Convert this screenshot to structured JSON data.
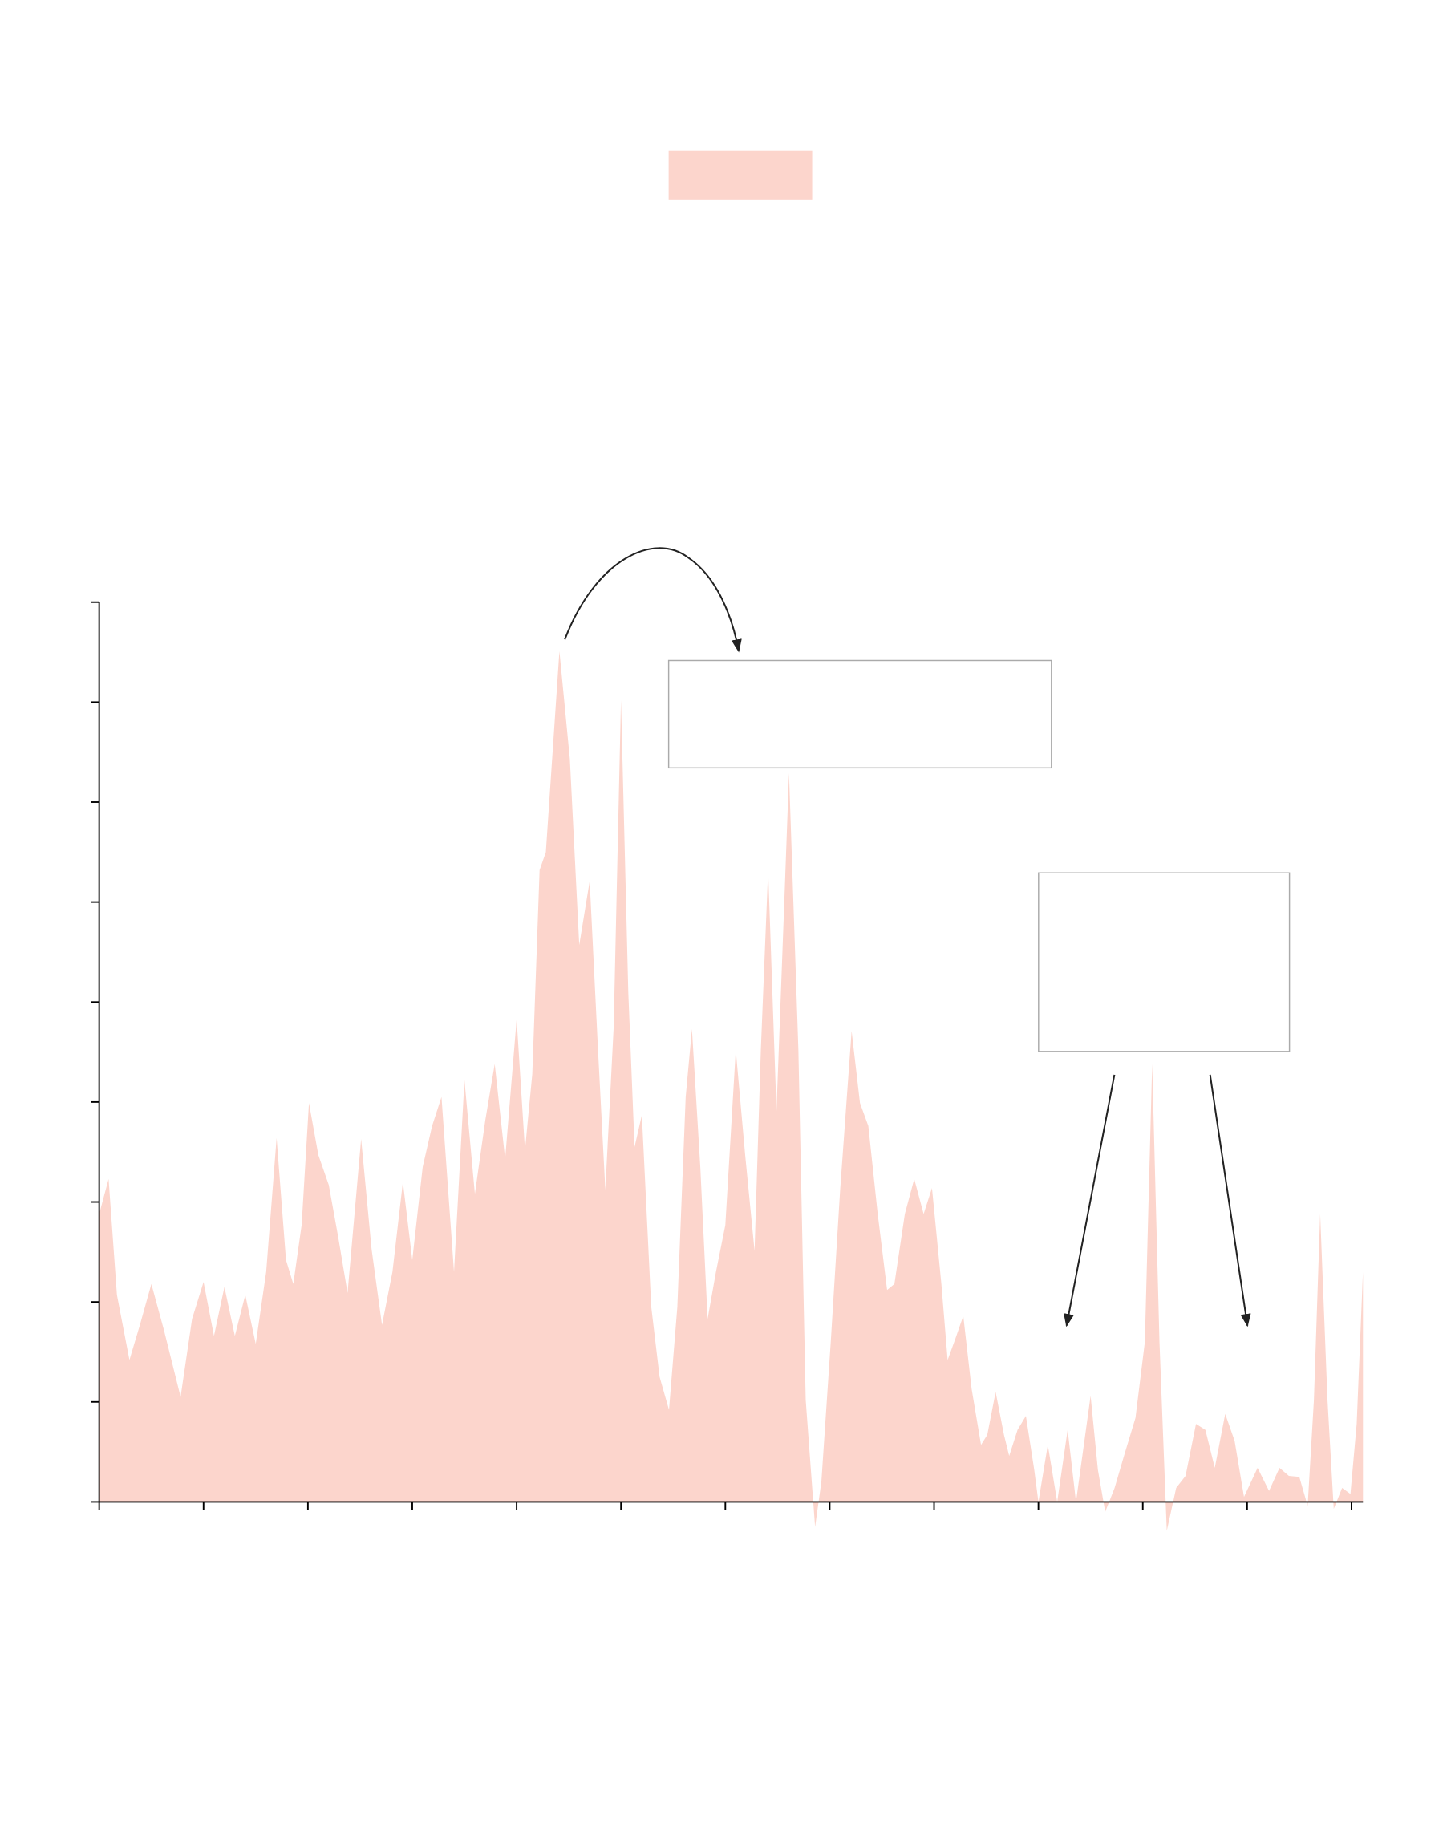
{
  "chart_data": {
    "type": "area",
    "color": "#fcd5cc",
    "x": [
      0,
      0.09,
      0.17,
      0.29,
      0.39,
      0.5,
      0.62,
      0.78,
      0.89,
      1.0,
      1.1,
      1.2,
      1.3,
      1.4,
      1.5,
      1.6,
      1.7,
      1.79,
      1.86,
      1.94,
      2.01,
      2.1,
      2.2,
      2.29,
      2.38,
      2.51,
      2.61,
      2.71,
      2.81,
      2.91,
      3.0,
      3.1,
      3.19,
      3.28,
      3.4,
      3.5,
      3.6,
      3.7,
      3.79,
      3.89,
      4.0,
      4.08,
      4.15,
      4.22,
      4.28,
      4.41,
      4.51,
      4.6,
      4.7,
      4.78,
      4.85,
      4.93,
      5.0,
      5.07,
      5.13,
      5.2,
      5.29,
      5.37,
      5.46,
      5.54,
      5.62,
      5.68,
      5.76,
      5.83,
      5.91,
      6.0,
      6.1,
      6.19,
      6.28,
      6.34,
      6.41,
      6.49,
      6.57,
      6.61,
      6.7,
      6.77,
      6.86,
      6.92,
      7.01,
      7.1,
      7.21,
      7.29,
      7.37,
      7.46,
      7.55,
      7.62,
      7.72,
      7.81,
      7.9,
      7.98,
      8.07,
      8.13,
      8.2,
      8.28,
      8.36,
      8.45,
      8.51,
      8.59,
      8.67,
      8.72,
      8.8,
      8.88,
      8.96,
      9.0,
      9.09,
      9.18,
      9.28,
      9.36,
      9.5,
      9.57,
      9.64,
      9.73,
      9.82,
      9.93,
      10.02,
      10.09,
      10.16,
      10.23,
      10.32,
      10.41,
      10.51,
      10.6,
      10.69,
      10.79,
      10.88,
      10.97,
      11.1,
      11.21,
      11.31,
      11.4,
      11.5,
      11.58,
      11.64,
      11.7,
      11.77,
      11.83,
      11.91,
      11.99,
      12.05,
      12.11
    ],
    "values": [
      2.88,
      3.23,
      2.07,
      1.42,
      1.77,
      2.18,
      1.72,
      1.05,
      1.83,
      2.2,
      1.66,
      2.15,
      1.66,
      2.07,
      1.58,
      2.3,
      3.64,
      2.42,
      2.18,
      2.77,
      3.99,
      3.47,
      3.17,
      2.65,
      2.09,
      3.63,
      2.53,
      1.77,
      2.3,
      3.2,
      2.42,
      3.35,
      3.76,
      4.05,
      2.3,
      4.22,
      3.08,
      3.82,
      4.38,
      3.43,
      4.83,
      3.52,
      4.28,
      6.32,
      6.5,
      8.51,
      7.43,
      5.57,
      6.21,
      4.52,
      3.12,
      4.75,
      8.02,
      5.1,
      3.55,
      3.87,
      1.95,
      1.25,
      0.92,
      1.95,
      4.05,
      4.73,
      3.35,
      1.83,
      2.3,
      2.77,
      4.52,
      3.47,
      2.51,
      4.52,
      6.32,
      3.91,
      6.15,
      7.29,
      4.52,
      1.02,
      -0.25,
      0.2,
      1.6,
      3.12,
      4.71,
      3.99,
      3.76,
      2.88,
      2.12,
      2.18,
      2.88,
      3.23,
      2.88,
      3.14,
      2.18,
      1.42,
      1.62,
      1.86,
      1.13,
      0.57,
      0.67,
      1.1,
      0.67,
      0.46,
      0.72,
      0.86,
      0.32,
      0,
      0.57,
      0,
      0.72,
      0,
      1.06,
      0.32,
      -0.1,
      0.14,
      0.46,
      0.84,
      1.6,
      4.38,
      1.6,
      -0.29,
      0.14,
      0.26,
      0.78,
      0.72,
      0.34,
      0.88,
      0.61,
      0.05,
      0.34,
      0.11,
      0.34,
      0.26,
      0.25,
      -0.04,
      1.02,
      2.88,
      1.02,
      -0.07,
      0.14,
      0.08,
      0.78,
      2.3
    ],
    "xlim": [
      0,
      12.11
    ],
    "ylim": [
      0,
      9
    ],
    "xticks": [
      0,
      1,
      2,
      3,
      4,
      5,
      6,
      7,
      8,
      9,
      10,
      11,
      12
    ],
    "yticks": [
      0,
      1,
      2,
      3,
      4,
      5,
      6,
      7,
      8,
      9
    ]
  }
}
